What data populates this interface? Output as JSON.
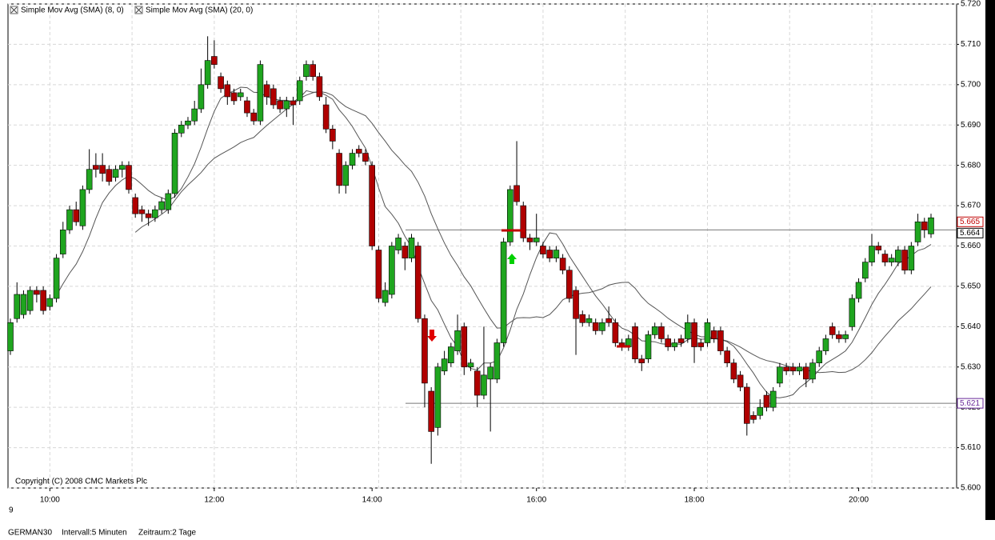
{
  "chart_data": {
    "type": "candlestick",
    "series": [
      {
        "name": "Simple Mov Avg (SMA) (8, 0)",
        "period": 8,
        "color": "#555555"
      },
      {
        "name": "Simple Mov Avg (SMA) (20, 0)",
        "period": 20,
        "color": "#555555"
      }
    ],
    "up_color": "#1fa51f",
    "down_color": "#b00000",
    "categories": [
      null,
      null,
      null,
      null,
      null,
      null,
      "10:00",
      null,
      null,
      null,
      null,
      null,
      null,
      null,
      null,
      null,
      null,
      null,
      null,
      null,
      null,
      null,
      null,
      null,
      null,
      null,
      null,
      null,
      null,
      null,
      null,
      "12:00",
      null,
      null,
      null,
      null,
      null,
      null,
      null,
      null,
      null,
      null,
      null,
      null,
      null,
      null,
      null,
      null,
      null,
      null,
      null,
      null,
      null,
      null,
      null,
      "14:00",
      null,
      null,
      null,
      null,
      null,
      null,
      null,
      null,
      null,
      null,
      null,
      null,
      null,
      null,
      null,
      null,
      null,
      null,
      null,
      null,
      null,
      null,
      null,
      null,
      "16:00",
      null,
      null,
      null,
      null,
      null,
      null,
      null,
      null,
      null,
      null,
      null,
      null,
      null,
      null,
      null,
      null,
      null,
      null,
      null,
      null,
      null,
      null,
      null,
      "18:00",
      null,
      null,
      null,
      null,
      null,
      null,
      null,
      null,
      null,
      null,
      null,
      null,
      null,
      null,
      null,
      null,
      null,
      null,
      null,
      null,
      null,
      null,
      null,
      null,
      "20:00",
      null,
      null,
      null,
      null,
      null,
      null,
      null,
      null,
      null,
      null,
      null
    ],
    "open": [
      5.634,
      5.642,
      5.643,
      5.644,
      5.649,
      5.649,
      5.645,
      5.647,
      5.658,
      5.664,
      5.669,
      5.665,
      5.674,
      5.68,
      5.68,
      5.679,
      5.677,
      5.679,
      5.68,
      5.672,
      5.669,
      5.668,
      5.667,
      5.669,
      5.669,
      5.673,
      5.688,
      5.69,
      5.691,
      5.694,
      5.7,
      5.707,
      5.702,
      5.7,
      5.698,
      5.697,
      5.696,
      5.693,
      5.691,
      5.7,
      5.699,
      5.696,
      5.694,
      5.696,
      5.696,
      5.702,
      5.705,
      5.702,
      5.695,
      5.689,
      5.683,
      5.675,
      5.68,
      5.684,
      5.683,
      5.68,
      5.659,
      5.646,
      5.648,
      5.659,
      5.66,
      5.657,
      5.66,
      5.642,
      5.624,
      5.615,
      5.629,
      5.631,
      5.634,
      5.64,
      5.63,
      5.629,
      5.623,
      5.627,
      5.627,
      5.636,
      5.661,
      5.675,
      5.67,
      5.662,
      5.661,
      5.66,
      5.659,
      5.657,
      5.657,
      5.654,
      5.649,
      5.643,
      5.641,
      5.641,
      5.639,
      5.642,
      5.641,
      5.636,
      5.635,
      5.64,
      5.632,
      5.632,
      5.638,
      5.64,
      5.637,
      5.635,
      5.637,
      5.637,
      5.641,
      5.636,
      5.636,
      5.639,
      5.639,
      5.634,
      5.631,
      5.628,
      5.625,
      5.618,
      5.618,
      5.623,
      5.62,
      5.626,
      5.63,
      5.63,
      5.629,
      5.63,
      5.627,
      5.631,
      5.634,
      5.64,
      5.638,
      5.637,
      5.64,
      5.647,
      5.652,
      5.656,
      5.66,
      5.658,
      5.656,
      5.656,
      5.659,
      5.654,
      5.661,
      5.666,
      5.663
    ],
    "high": [
      5.642,
      5.651,
      5.649,
      5.65,
      5.65,
      5.65,
      5.648,
      5.658,
      5.666,
      5.67,
      5.671,
      5.675,
      5.684,
      5.683,
      5.683,
      5.68,
      5.68,
      5.681,
      5.681,
      5.673,
      5.67,
      5.669,
      5.67,
      5.672,
      5.674,
      5.689,
      5.691,
      5.692,
      5.696,
      5.704,
      5.712,
      5.711,
      5.703,
      5.701,
      5.699,
      5.699,
      5.697,
      5.694,
      5.706,
      5.701,
      5.7,
      5.697,
      5.697,
      5.697,
      5.702,
      5.706,
      5.706,
      5.703,
      5.697,
      5.69,
      5.684,
      5.681,
      5.684,
      5.685,
      5.684,
      5.681,
      5.66,
      5.651,
      5.661,
      5.663,
      5.661,
      5.663,
      5.661,
      5.643,
      5.625,
      5.631,
      5.634,
      5.636,
      5.643,
      5.641,
      5.632,
      5.63,
      5.64,
      5.631,
      5.637,
      5.662,
      5.675,
      5.686,
      5.671,
      5.663,
      5.668,
      5.661,
      5.66,
      5.66,
      5.658,
      5.655,
      5.65,
      5.644,
      5.643,
      5.642,
      5.642,
      5.645,
      5.642,
      5.637,
      5.638,
      5.641,
      5.633,
      5.639,
      5.641,
      5.641,
      5.638,
      5.637,
      5.638,
      5.643,
      5.642,
      5.637,
      5.642,
      5.64,
      5.64,
      5.635,
      5.632,
      5.629,
      5.626,
      5.619,
      5.622,
      5.624,
      5.625,
      5.631,
      5.631,
      5.631,
      5.631,
      5.631,
      5.632,
      5.635,
      5.638,
      5.641,
      5.639,
      5.639,
      5.648,
      5.652,
      5.657,
      5.663,
      5.661,
      5.659,
      5.658,
      5.66,
      5.66,
      5.661,
      5.668,
      5.667,
      5.668
    ],
    "low": [
      5.633,
      5.641,
      5.642,
      5.643,
      5.646,
      5.643,
      5.644,
      5.646,
      5.657,
      5.663,
      5.665,
      5.664,
      5.673,
      5.677,
      5.676,
      5.675,
      5.676,
      5.677,
      5.673,
      5.667,
      5.666,
      5.665,
      5.666,
      5.668,
      5.668,
      5.672,
      5.687,
      5.689,
      5.69,
      5.693,
      5.699,
      5.704,
      5.698,
      5.695,
      5.695,
      5.696,
      5.692,
      5.69,
      5.69,
      5.695,
      5.694,
      5.693,
      5.692,
      5.69,
      5.695,
      5.701,
      5.701,
      5.696,
      5.688,
      5.684,
      5.673,
      5.673,
      5.679,
      5.682,
      5.68,
      5.659,
      5.646,
      5.645,
      5.647,
      5.658,
      5.654,
      5.656,
      5.641,
      5.62,
      5.606,
      5.613,
      5.628,
      5.63,
      5.633,
      5.628,
      5.629,
      5.62,
      5.622,
      5.614,
      5.626,
      5.635,
      5.66,
      5.67,
      5.661,
      5.659,
      5.66,
      5.657,
      5.656,
      5.656,
      5.653,
      5.646,
      5.633,
      5.64,
      5.64,
      5.638,
      5.638,
      5.64,
      5.635,
      5.634,
      5.634,
      5.631,
      5.629,
      5.631,
      5.637,
      5.636,
      5.634,
      5.634,
      5.635,
      5.636,
      5.631,
      5.634,
      5.635,
      5.636,
      5.633,
      5.63,
      5.626,
      5.624,
      5.613,
      5.616,
      5.617,
      5.619,
      5.619,
      5.625,
      5.628,
      5.628,
      5.628,
      5.625,
      5.626,
      5.63,
      5.633,
      5.637,
      5.636,
      5.636,
      5.639,
      5.646,
      5.651,
      5.655,
      5.658,
      5.655,
      5.655,
      5.655,
      5.653,
      5.653,
      5.66,
      5.662,
      5.662
    ],
    "close": [
      5.641,
      5.648,
      5.648,
      5.649,
      5.648,
      5.644,
      5.647,
      5.657,
      5.664,
      5.669,
      5.666,
      5.674,
      5.679,
      5.679,
      5.678,
      5.676,
      5.679,
      5.68,
      5.674,
      5.668,
      5.668,
      5.667,
      5.669,
      5.671,
      5.673,
      5.688,
      5.69,
      5.691,
      5.694,
      5.7,
      5.706,
      5.705,
      5.699,
      5.697,
      5.696,
      5.698,
      5.693,
      5.691,
      5.705,
      5.697,
      5.695,
      5.694,
      5.696,
      5.695,
      5.701,
      5.705,
      5.702,
      5.697,
      5.689,
      5.686,
      5.675,
      5.68,
      5.683,
      5.683,
      5.681,
      5.66,
      5.647,
      5.649,
      5.66,
      5.662,
      5.657,
      5.662,
      5.642,
      5.626,
      5.614,
      5.63,
      5.632,
      5.635,
      5.639,
      5.63,
      5.631,
      5.623,
      5.628,
      5.63,
      5.636,
      5.661,
      5.674,
      5.671,
      5.662,
      5.661,
      5.662,
      5.658,
      5.657,
      5.659,
      5.654,
      5.647,
      5.642,
      5.641,
      5.642,
      5.639,
      5.641,
      5.641,
      5.636,
      5.635,
      5.637,
      5.632,
      5.631,
      5.638,
      5.64,
      5.637,
      5.635,
      5.636,
      5.636,
      5.641,
      5.635,
      5.635,
      5.641,
      5.637,
      5.634,
      5.631,
      5.627,
      5.625,
      5.616,
      5.617,
      5.62,
      5.62,
      5.624,
      5.63,
      5.629,
      5.629,
      5.63,
      5.627,
      5.631,
      5.634,
      5.637,
      5.638,
      5.637,
      5.638,
      5.647,
      5.651,
      5.656,
      5.66,
      5.659,
      5.656,
      5.657,
      5.659,
      5.654,
      5.66,
      5.666,
      5.664,
      5.667
    ],
    "ylim": [
      5.6,
      5.72
    ],
    "yticks": [
      {
        "value": 5.6,
        "label": "5.600"
      },
      {
        "value": 5.61,
        "label": "5.610"
      },
      {
        "value": 5.62,
        "label": "5.620"
      },
      {
        "value": 5.63,
        "label": "5.630"
      },
      {
        "value": 5.64,
        "label": "5.640"
      },
      {
        "value": 5.65,
        "label": "5.650"
      },
      {
        "value": 5.66,
        "label": "5.660"
      },
      {
        "value": 5.67,
        "label": "5.670"
      },
      {
        "value": 5.68,
        "label": "5.680"
      },
      {
        "value": 5.69,
        "label": "5.690"
      },
      {
        "value": 5.7,
        "label": "5.700"
      },
      {
        "value": 5.71,
        "label": "5.710"
      },
      {
        "value": 5.72,
        "label": "5.720"
      }
    ],
    "grid": true,
    "hlines": [
      5.664,
      5.621
    ],
    "price_labels": [
      {
        "value": 5.665,
        "label": "5.665",
        "color": "#c00000"
      },
      {
        "value": 5.664,
        "label": "5.664",
        "color": "#000000"
      },
      {
        "value": 5.621,
        "label": "5.621",
        "color": "#6a2a9a"
      }
    ],
    "copyright": "Copyright (C) 2008 CMC Markets Plc",
    "day_label": "9",
    "footer": {
      "symbol": "GERMAN30",
      "interval": "Intervall:5 Minuten",
      "period": "Zeitraum:2 Tage"
    }
  }
}
